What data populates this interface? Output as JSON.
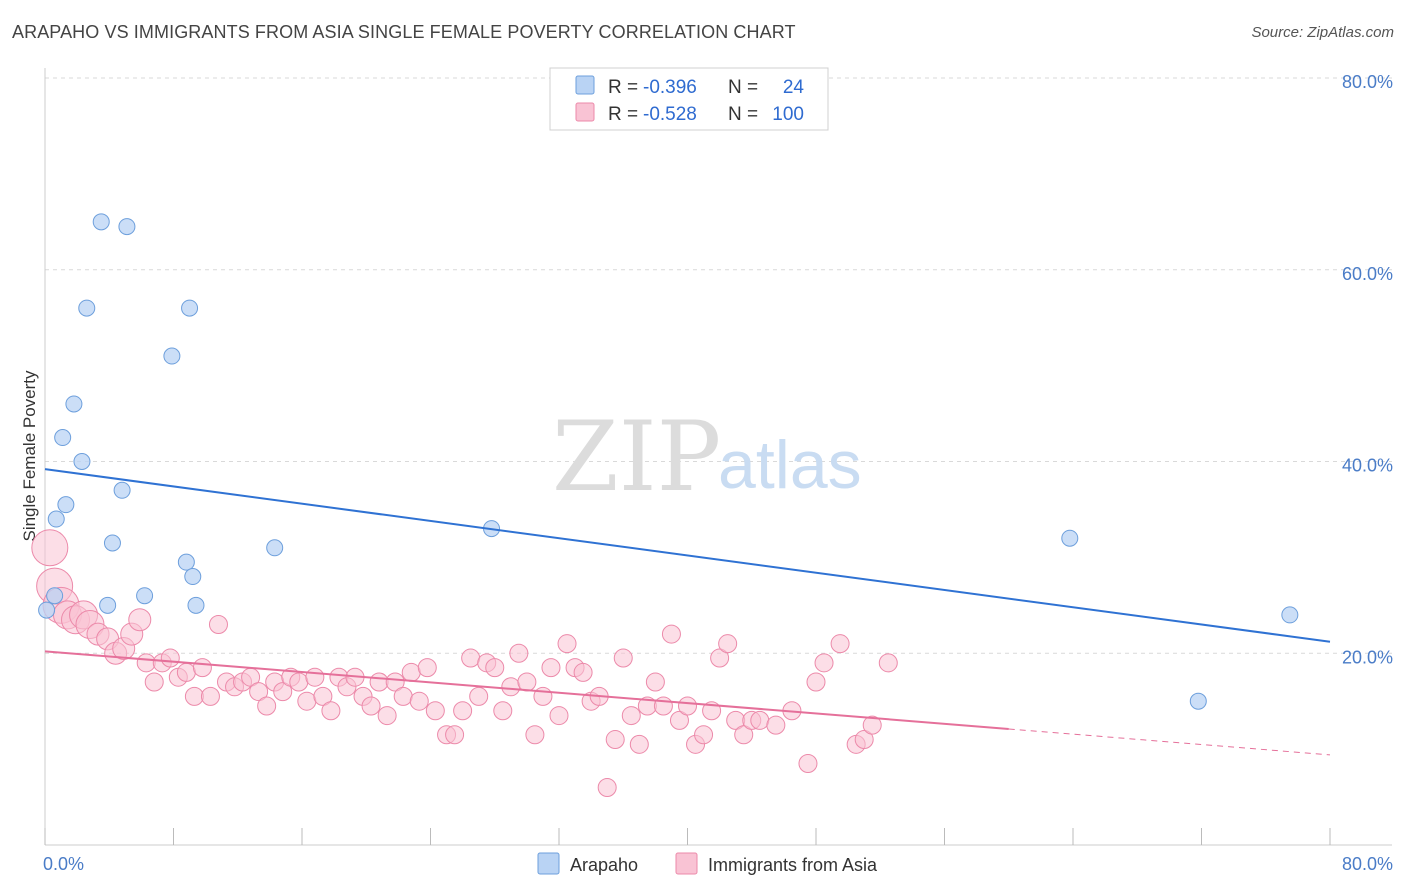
{
  "title": "ARAPAHO VS IMMIGRANTS FROM ASIA SINGLE FEMALE POVERTY CORRELATION CHART",
  "source": "Source: ZipAtlas.com",
  "watermark": {
    "zip": "ZIP",
    "atlas": "atlas"
  },
  "colors": {
    "arapaho_fill": "#b9d3f4",
    "arapaho_stroke": "#6d9fdc",
    "arapaho_line": "#2f72d3",
    "asia_fill": "#f9c3d4",
    "asia_stroke": "#ec8aaa",
    "asia_line": "#e5709a",
    "grid": "#d9d9d9",
    "tick_text": "#4a7cc7"
  },
  "legend": {
    "rows": [
      {
        "r_label": "R =",
        "r_value": "-0.396",
        "n_label": "N =",
        "n_value": "24"
      },
      {
        "r_label": "R =",
        "r_value": "-0.528",
        "n_label": "N =",
        "n_value": "100"
      }
    ]
  },
  "chart_data": {
    "type": "scatter",
    "title": "ARAPAHO VS IMMIGRANTS FROM ASIA SINGLE FEMALE POVERTY CORRELATION CHART",
    "xlabel": "",
    "ylabel": "Single Female Poverty",
    "xlim": [
      0,
      80
    ],
    "ylim": [
      0,
      80
    ],
    "x_tick_labels": [
      "0.0%",
      "80.0%"
    ],
    "y_ticks": [
      20,
      40,
      60,
      80
    ],
    "y_tick_labels": [
      "20.0%",
      "40.0%",
      "60.0%",
      "80.0%"
    ],
    "grid": true,
    "legend_position": "top-center",
    "series": [
      {
        "name": "Arapaho",
        "r": -0.396,
        "n": 24,
        "points": [
          [
            0.1,
            24.5
          ],
          [
            0.6,
            26
          ],
          [
            0.7,
            34
          ],
          [
            1.1,
            42.5
          ],
          [
            1.3,
            35.5
          ],
          [
            1.8,
            46
          ],
          [
            2.3,
            40
          ],
          [
            2.6,
            56
          ],
          [
            3.5,
            65
          ],
          [
            3.9,
            25
          ],
          [
            4.2,
            31.5
          ],
          [
            4.8,
            37
          ],
          [
            5.1,
            64.5
          ],
          [
            6.2,
            26
          ],
          [
            7.9,
            51
          ],
          [
            8.8,
            29.5
          ],
          [
            9.2,
            28
          ],
          [
            9.0,
            56
          ],
          [
            9.4,
            25
          ],
          [
            14.3,
            31
          ],
          [
            27.8,
            33
          ],
          [
            63.8,
            32
          ],
          [
            71.8,
            15
          ],
          [
            77.5,
            24
          ]
        ],
        "trend": {
          "x": [
            0,
            80
          ],
          "y": [
            39.2,
            21.2
          ]
        }
      },
      {
        "name": "Immigrants from Asia",
        "r": -0.528,
        "n": 100,
        "points": [
          [
            0.3,
            31
          ],
          [
            0.6,
            27
          ],
          [
            1.0,
            25
          ],
          [
            1.4,
            24
          ],
          [
            1.9,
            23.5
          ],
          [
            2.4,
            24
          ],
          [
            2.8,
            23
          ],
          [
            3.3,
            22
          ],
          [
            3.9,
            21.5
          ],
          [
            4.4,
            20
          ],
          [
            4.9,
            20.5
          ],
          [
            5.4,
            22
          ],
          [
            5.9,
            23.5
          ],
          [
            6.3,
            19
          ],
          [
            6.8,
            17
          ],
          [
            7.3,
            19
          ],
          [
            7.8,
            19.5
          ],
          [
            8.3,
            17.5
          ],
          [
            8.8,
            18
          ],
          [
            9.3,
            15.5
          ],
          [
            9.8,
            18.5
          ],
          [
            10.3,
            15.5
          ],
          [
            10.8,
            23
          ],
          [
            11.3,
            17
          ],
          [
            11.8,
            16.5
          ],
          [
            12.3,
            17
          ],
          [
            12.8,
            17.5
          ],
          [
            13.3,
            16
          ],
          [
            13.8,
            14.5
          ],
          [
            14.3,
            17
          ],
          [
            14.8,
            16
          ],
          [
            15.3,
            17.5
          ],
          [
            15.8,
            17
          ],
          [
            16.3,
            15
          ],
          [
            16.8,
            17.5
          ],
          [
            17.3,
            15.5
          ],
          [
            17.8,
            14
          ],
          [
            18.3,
            17.5
          ],
          [
            18.8,
            16.5
          ],
          [
            19.3,
            17.5
          ],
          [
            19.8,
            15.5
          ],
          [
            20.3,
            14.5
          ],
          [
            20.8,
            17
          ],
          [
            21.3,
            13.5
          ],
          [
            21.8,
            17
          ],
          [
            22.3,
            15.5
          ],
          [
            22.8,
            18
          ],
          [
            23.3,
            15
          ],
          [
            23.8,
            18.5
          ],
          [
            24.3,
            14
          ],
          [
            25.0,
            11.5
          ],
          [
            25.5,
            11.5
          ],
          [
            26.0,
            14
          ],
          [
            26.5,
            19.5
          ],
          [
            27.0,
            15.5
          ],
          [
            27.5,
            19
          ],
          [
            28.0,
            18.5
          ],
          [
            28.5,
            14
          ],
          [
            29.0,
            16.5
          ],
          [
            29.5,
            20
          ],
          [
            30.0,
            17
          ],
          [
            30.5,
            11.5
          ],
          [
            31.0,
            15.5
          ],
          [
            31.5,
            18.5
          ],
          [
            32.0,
            13.5
          ],
          [
            32.5,
            21
          ],
          [
            33.0,
            18.5
          ],
          [
            33.5,
            18
          ],
          [
            34.0,
            15
          ],
          [
            34.5,
            15.5
          ],
          [
            35.0,
            6
          ],
          [
            35.5,
            11
          ],
          [
            36.0,
            19.5
          ],
          [
            36.5,
            13.5
          ],
          [
            37.0,
            10.5
          ],
          [
            37.5,
            14.5
          ],
          [
            38.0,
            17
          ],
          [
            38.5,
            14.5
          ],
          [
            39.0,
            22
          ],
          [
            39.5,
            13
          ],
          [
            40.0,
            14.5
          ],
          [
            40.5,
            10.5
          ],
          [
            41.0,
            11.5
          ],
          [
            41.5,
            14
          ],
          [
            42.0,
            19.5
          ],
          [
            42.5,
            21
          ],
          [
            43.0,
            13
          ],
          [
            43.5,
            11.5
          ],
          [
            44.0,
            13
          ],
          [
            44.5,
            13
          ],
          [
            45.5,
            12.5
          ],
          [
            46.5,
            14
          ],
          [
            47.5,
            8.5
          ],
          [
            48.0,
            17
          ],
          [
            48.5,
            19
          ],
          [
            49.5,
            21
          ],
          [
            50.5,
            10.5
          ],
          [
            51.0,
            11
          ],
          [
            51.5,
            12.5
          ],
          [
            52.5,
            19
          ]
        ],
        "trend": {
          "x": [
            0,
            60
          ],
          "y": [
            20.2,
            12.1
          ]
        },
        "trend_dashed": {
          "x": [
            60,
            80
          ],
          "y": [
            12.1,
            9.4
          ]
        }
      }
    ]
  },
  "bottom_legend": {
    "items": [
      {
        "label": "Arapaho"
      },
      {
        "label": "Immigrants from Asia"
      }
    ]
  }
}
